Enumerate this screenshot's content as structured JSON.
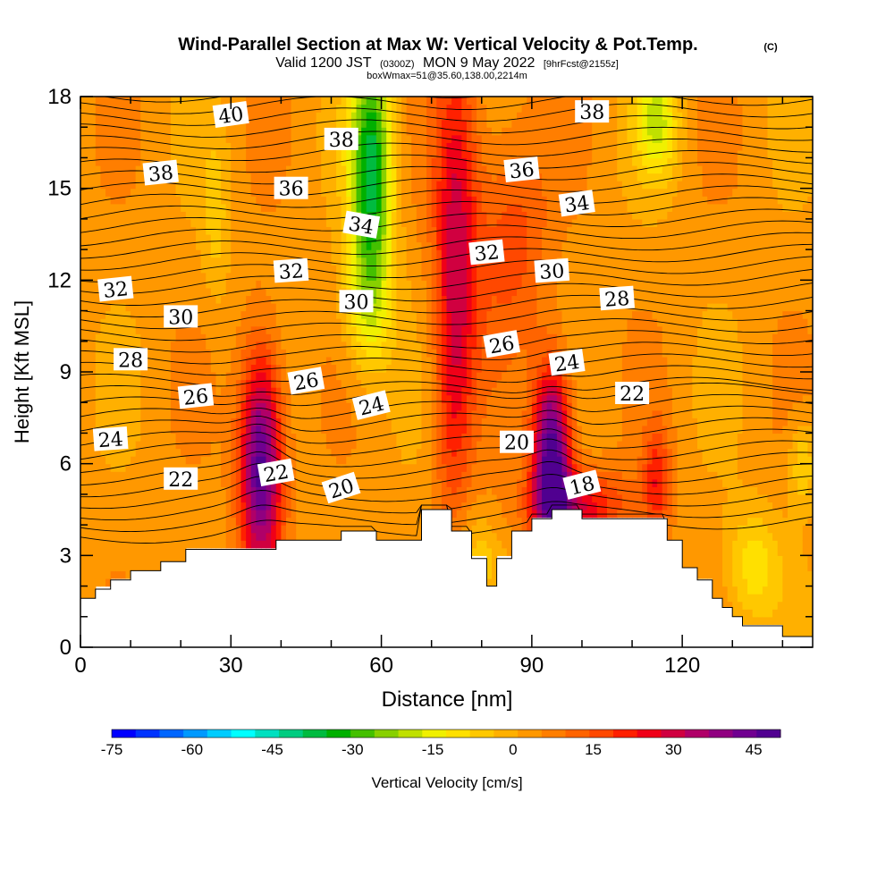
{
  "chart_data": {
    "type": "heatmap",
    "title": "Wind-Parallel Section at Max W: Vertical Velocity & Pot.Temp.",
    "title_mark": "(C)",
    "subtitle_parts": [
      "Valid 1200 JST",
      "(0300Z)",
      "MON 9 May 2022",
      "[9hrFcst@2155z]"
    ],
    "subtitle2": "boxWmax=51@35.60,138.00,2214m",
    "xlabel": "Distance [nm]",
    "ylabel": "Height [Kft MSL]",
    "xlim": [
      0,
      146
    ],
    "ylim": [
      0,
      18
    ],
    "x_ticks": [
      0,
      30,
      60,
      90,
      120
    ],
    "y_ticks": [
      0,
      3,
      6,
      9,
      12,
      15,
      18
    ],
    "colorbar": {
      "label": "Vertical Velocity [cm/s]",
      "tick_labels": [
        "-75",
        "-60",
        "-45",
        "-30",
        "-15",
        "0",
        "15",
        "30",
        "45"
      ],
      "levels": [
        -75,
        50
      ],
      "colors": [
        "#0000ff",
        "#0033ff",
        "#0066ff",
        "#0099ff",
        "#00ccff",
        "#00ffff",
        "#00e0c0",
        "#00cc80",
        "#00bb40",
        "#00b000",
        "#44c000",
        "#88d000",
        "#c0e000",
        "#f0f000",
        "#ffe000",
        "#ffc800",
        "#ffb000",
        "#ff9800",
        "#ff7e00",
        "#ff6400",
        "#ff4800",
        "#ff2000",
        "#f00018",
        "#d00040",
        "#b00068",
        "#900080",
        "#700090",
        "#500090"
      ]
    },
    "terrain_kft": [
      [
        0,
        1.6
      ],
      [
        3,
        1.6
      ],
      [
        3,
        1.9
      ],
      [
        6,
        1.9
      ],
      [
        6,
        2.2
      ],
      [
        10,
        2.2
      ],
      [
        10,
        2.5
      ],
      [
        16,
        2.5
      ],
      [
        16,
        2.8
      ],
      [
        21,
        2.8
      ],
      [
        21,
        3.2
      ],
      [
        39,
        3.2
      ],
      [
        39,
        3.5
      ],
      [
        52,
        3.5
      ],
      [
        52,
        3.8
      ],
      [
        59,
        3.8
      ],
      [
        59,
        3.5
      ],
      [
        68,
        3.5
      ],
      [
        68,
        4.5
      ],
      [
        74,
        4.5
      ],
      [
        74,
        3.8
      ],
      [
        78,
        3.8
      ],
      [
        78,
        3.5
      ],
      [
        78,
        2.9
      ],
      [
        81,
        2.9
      ],
      [
        81,
        2.0
      ],
      [
        83,
        2.0
      ],
      [
        83,
        2.9
      ],
      [
        86,
        2.9
      ],
      [
        86,
        3.8
      ],
      [
        90,
        3.8
      ],
      [
        90,
        4.2
      ],
      [
        94,
        4.2
      ],
      [
        94,
        4.5
      ],
      [
        100,
        4.5
      ],
      [
        100,
        4.2
      ],
      [
        117,
        4.2
      ],
      [
        117,
        3.5
      ],
      [
        120,
        3.5
      ],
      [
        120,
        2.6
      ],
      [
        123,
        2.6
      ],
      [
        123,
        2.2
      ],
      [
        126,
        2.2
      ],
      [
        126,
        1.6
      ],
      [
        128,
        1.6
      ],
      [
        128,
        1.3
      ],
      [
        130,
        1.3
      ],
      [
        130,
        1.0
      ],
      [
        132,
        1.0
      ],
      [
        132,
        0.7
      ],
      [
        140,
        0.7
      ],
      [
        140,
        0.35
      ],
      [
        146,
        0.35
      ]
    ],
    "theta_labels": [
      {
        "text": "40",
        "x": 30,
        "y": 17.4
      },
      {
        "text": "38",
        "x": 52,
        "y": 16.6
      },
      {
        "text": "38",
        "x": 102,
        "y": 17.5
      },
      {
        "text": "38",
        "x": 16,
        "y": 15.5
      },
      {
        "text": "36",
        "x": 42,
        "y": 15.0
      },
      {
        "text": "36",
        "x": 88,
        "y": 15.6
      },
      {
        "text": "34",
        "x": 56,
        "y": 13.8
      },
      {
        "text": "34",
        "x": 99,
        "y": 14.5
      },
      {
        "text": "32",
        "x": 7,
        "y": 11.7
      },
      {
        "text": "32",
        "x": 42,
        "y": 12.3
      },
      {
        "text": "32",
        "x": 81,
        "y": 12.9
      },
      {
        "text": "30",
        "x": 20,
        "y": 10.8
      },
      {
        "text": "30",
        "x": 55,
        "y": 11.3
      },
      {
        "text": "30",
        "x": 94,
        "y": 12.3
      },
      {
        "text": "28",
        "x": 10,
        "y": 9.4
      },
      {
        "text": "28",
        "x": 107,
        "y": 11.4
      },
      {
        "text": "26",
        "x": 23,
        "y": 8.2
      },
      {
        "text": "26",
        "x": 45,
        "y": 8.7
      },
      {
        "text": "26",
        "x": 84,
        "y": 9.9
      },
      {
        "text": "24",
        "x": 6,
        "y": 6.8
      },
      {
        "text": "24",
        "x": 58,
        "y": 7.9
      },
      {
        "text": "24",
        "x": 97,
        "y": 9.3
      },
      {
        "text": "22",
        "x": 20,
        "y": 5.5
      },
      {
        "text": "22",
        "x": 39,
        "y": 5.7
      },
      {
        "text": "22",
        "x": 110,
        "y": 8.3
      },
      {
        "text": "20",
        "x": 52,
        "y": 5.2
      },
      {
        "text": "20",
        "x": 87,
        "y": 6.7
      },
      {
        "text": "18",
        "x": 100,
        "y": 5.3
      }
    ]
  }
}
